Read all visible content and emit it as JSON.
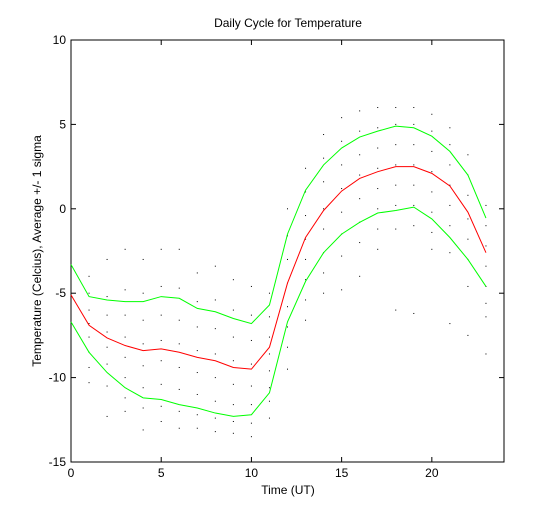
{
  "chart_data": {
    "type": "line",
    "title": "Daily Cycle for Temperature",
    "x_label": "Time (UT)",
    "y_label": "Temperature (Celcius), Average +/- 1 sigma",
    "x": [
      0,
      1,
      2,
      3,
      4,
      5,
      6,
      7,
      8,
      9,
      10,
      11,
      12,
      13,
      14,
      15,
      16,
      17,
      18,
      19,
      20,
      21,
      22,
      23
    ],
    "series": [
      {
        "color": "#00ff00",
        "values": [
          -3.3,
          -5.2,
          -5.4,
          -5.5,
          -5.5,
          -5.2,
          -5.3,
          -5.9,
          -6.1,
          -6.5,
          -6.8,
          -5.7,
          -1.5,
          1.1,
          2.6,
          3.6,
          4.25,
          4.6,
          4.9,
          4.8,
          4.3,
          3.4,
          2.0,
          -0.55
        ]
      },
      {
        "color": "#ff0000",
        "values": [
          -5.1,
          -6.9,
          -7.65,
          -8.1,
          -8.4,
          -8.3,
          -8.5,
          -8.8,
          -9.0,
          -9.4,
          -9.5,
          -8.2,
          -4.4,
          -1.7,
          -0.1,
          1.05,
          1.8,
          2.2,
          2.5,
          2.5,
          2.1,
          1.35,
          -0.2,
          -2.6
        ]
      },
      {
        "color": "#00ff00",
        "values": [
          -6.7,
          -8.5,
          -9.7,
          -10.6,
          -11.2,
          -11.3,
          -11.6,
          -11.8,
          -12.1,
          -12.3,
          -12.2,
          -10.9,
          -6.7,
          -4.3,
          -2.6,
          -1.5,
          -0.8,
          -0.25,
          -0.1,
          0.1,
          -0.6,
          -1.7,
          -3.0,
          -4.6
        ]
      }
    ],
    "observations_color": "#000000",
    "observations": [
      [
        -2.3,
        -3.2,
        -4.0,
        -4.8,
        -5.5,
        -6.3,
        -7.2,
        -8.4
      ],
      [
        -4.0,
        -5.0,
        -6.0,
        -6.8,
        -7.6,
        -8.5,
        -9.4,
        -10.3
      ],
      [
        -3.0,
        -5.2,
        -6.3,
        -7.3,
        -8.2,
        -9.2,
        -10.5,
        -12.3
      ],
      [
        -2.4,
        -4.8,
        -6.3,
        -7.6,
        -8.8,
        -10.0,
        -11.2,
        -12.0
      ],
      [
        -3.0,
        -5.0,
        -6.6,
        -8.0,
        -9.3,
        -10.6,
        -11.8,
        -13.1
      ],
      [
        -2.4,
        -4.6,
        -6.3,
        -7.8,
        -9.0,
        -10.4,
        -11.7,
        -12.6
      ],
      [
        -2.4,
        -4.7,
        -6.6,
        -8.0,
        -9.4,
        -10.7,
        -12.0,
        -13.0
      ],
      [
        -3.8,
        -5.5,
        -7.0,
        -8.4,
        -9.7,
        -11.0,
        -12.2,
        -13.0
      ],
      [
        -3.4,
        -5.4,
        -7.1,
        -8.6,
        -10.0,
        -11.4,
        -12.4,
        -13.2
      ],
      [
        -4.2,
        -6.0,
        -7.6,
        -9.0,
        -10.4,
        -11.6,
        -12.6,
        -13.3
      ],
      [
        -4.6,
        -6.3,
        -7.8,
        -9.2,
        -10.5,
        -11.6,
        -12.7,
        -13.5
      ],
      [
        -5.0,
        -6.4,
        -7.6,
        -8.6,
        -9.6,
        -10.6,
        -11.4,
        -12.4
      ],
      [
        0.0,
        -1.6,
        -3.0,
        -4.4,
        -5.8,
        -7.0,
        -8.2,
        -9.5
      ],
      [
        2.4,
        1.0,
        -0.4,
        -1.8,
        -3.0,
        -4.2,
        -5.4,
        -6.6
      ],
      [
        4.4,
        3.0,
        1.6,
        0.0,
        -1.2,
        -2.6,
        -3.8,
        -5.0
      ],
      [
        5.4,
        4.0,
        2.6,
        1.2,
        -0.2,
        -1.5,
        -2.8,
        -4.8
      ],
      [
        5.8,
        4.6,
        3.2,
        2.0,
        0.6,
        -0.8,
        -2.0,
        -4.0
      ],
      [
        6.0,
        4.8,
        3.6,
        2.4,
        1.2,
        0.0,
        -1.2,
        -2.4
      ],
      [
        6.0,
        5.0,
        3.8,
        2.6,
        1.4,
        0.2,
        -1.2,
        -6.0
      ],
      [
        6.0,
        5.0,
        3.8,
        2.6,
        1.4,
        0.2,
        -1.0,
        -6.2
      ],
      [
        5.6,
        4.6,
        3.4,
        2.2,
        1.0,
        -0.2,
        -1.4,
        -2.4
      ],
      [
        4.8,
        3.8,
        2.6,
        1.4,
        0.2,
        -1.0,
        -2.6,
        -6.8
      ],
      [
        3.2,
        2.0,
        0.8,
        -0.6,
        -1.8,
        -3.0,
        -4.6,
        -7.5
      ],
      [
        0.2,
        -1.0,
        -2.2,
        -3.4,
        -4.6,
        -5.6,
        -6.4,
        -8.6
      ]
    ],
    "xlim": [
      0,
      24
    ],
    "ylim": [
      -15,
      10
    ],
    "xticks": [
      0,
      5,
      10,
      15,
      20
    ],
    "yticks": [
      -15,
      -10,
      -5,
      0,
      5,
      10
    ],
    "grid": false
  }
}
